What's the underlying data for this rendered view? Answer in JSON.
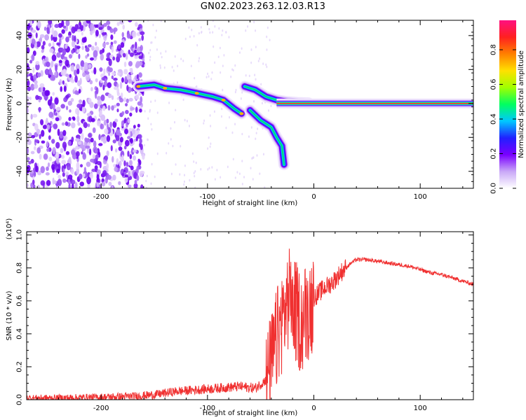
{
  "title": "GN02.2023.263.12.03.R13",
  "chart_data": [
    {
      "type": "heatmap",
      "xlabel": "Height of straight line (km)",
      "ylabel": "Frequency (Hz)",
      "xlim": [
        -270,
        150
      ],
      "ylim": [
        -50,
        49
      ],
      "x_ticks": [
        "-200",
        "-100",
        "0",
        "100"
      ],
      "y_ticks": [
        "-40",
        "-20",
        "0",
        "20",
        "40"
      ],
      "colorbar": {
        "label": "Normalized spectral amplitude",
        "range": [
          0,
          0.97
        ],
        "ticks": [
          "0.0",
          "0.2",
          "0.4",
          "0.6",
          "0.8"
        ],
        "colors": [
          "#ffffff",
          "#c9a8f7",
          "#7a00ff",
          "#2020ff",
          "#00c8ff",
          "#00ff60",
          "#a0ff00",
          "#ffe000",
          "#ff8000",
          "#ff2020",
          "#ff1080"
        ]
      },
      "features": {
        "noise_region_x": [
          -270,
          -160
        ],
        "track": [
          {
            "x": -165,
            "f": 10
          },
          {
            "x": -150,
            "f": 11
          },
          {
            "x": -140,
            "f": 9
          },
          {
            "x": -125,
            "f": 8
          },
          {
            "x": -110,
            "f": 6
          },
          {
            "x": -95,
            "f": 4
          },
          {
            "x": -85,
            "f": 2
          },
          {
            "x": -75,
            "f": -3
          },
          {
            "x": -68,
            "f": -6
          }
        ],
        "branch_upper": [
          {
            "x": -65,
            "f": 10
          },
          {
            "x": -55,
            "f": 8
          },
          {
            "x": -45,
            "f": 4
          },
          {
            "x": -35,
            "f": 2
          },
          {
            "x": -25,
            "f": 1
          },
          {
            "x": -15,
            "f": 0.5
          },
          {
            "x": -5,
            "f": 0.3
          }
        ],
        "branch_lower": [
          {
            "x": -60,
            "f": -4
          },
          {
            "x": -50,
            "f": -10
          },
          {
            "x": -40,
            "f": -14
          },
          {
            "x": -35,
            "f": -20
          },
          {
            "x": -30,
            "f": -25
          },
          {
            "x": -28,
            "f": -36
          }
        ],
        "carrier_start_x": -35,
        "carrier_end_x": 150,
        "carrier_f": 0
      }
    },
    {
      "type": "line",
      "xlabel": "Height of straight line (km)",
      "ylabel": "SNR (10 * v/v)",
      "y_multiplier": "(x10⁴)",
      "xlim": [
        -270,
        150
      ],
      "ylim": [
        0,
        1.02
      ],
      "x_ticks": [
        "-200",
        "-100",
        "0",
        "100"
      ],
      "y_ticks": [
        "0.0",
        "0.2",
        "0.4",
        "0.6",
        "0.8",
        "1.0"
      ],
      "color": "#f03030",
      "series": [
        {
          "x": [
            -270,
            -240,
            -200,
            -170,
            -150,
            -130,
            -110,
            -90,
            -70,
            -55,
            -45,
            -38,
            -33,
            -28,
            -24,
            -20,
            -16,
            -12,
            -8,
            -4,
            0,
            5,
            10,
            15,
            20,
            25,
            30,
            35,
            40,
            50,
            60,
            70,
            80,
            90,
            100,
            110,
            120,
            130,
            140,
            150
          ],
          "y": [
            0.01,
            0.01,
            0.015,
            0.02,
            0.03,
            0.05,
            0.06,
            0.07,
            0.08,
            0.07,
            0.12,
            0.3,
            0.45,
            0.55,
            0.65,
            0.6,
            0.55,
            0.5,
            0.55,
            0.6,
            0.62,
            0.65,
            0.68,
            0.7,
            0.73,
            0.77,
            0.8,
            0.83,
            0.85,
            0.85,
            0.84,
            0.83,
            0.82,
            0.81,
            0.79,
            0.77,
            0.76,
            0.74,
            0.72,
            0.7
          ]
        }
      ]
    }
  ]
}
